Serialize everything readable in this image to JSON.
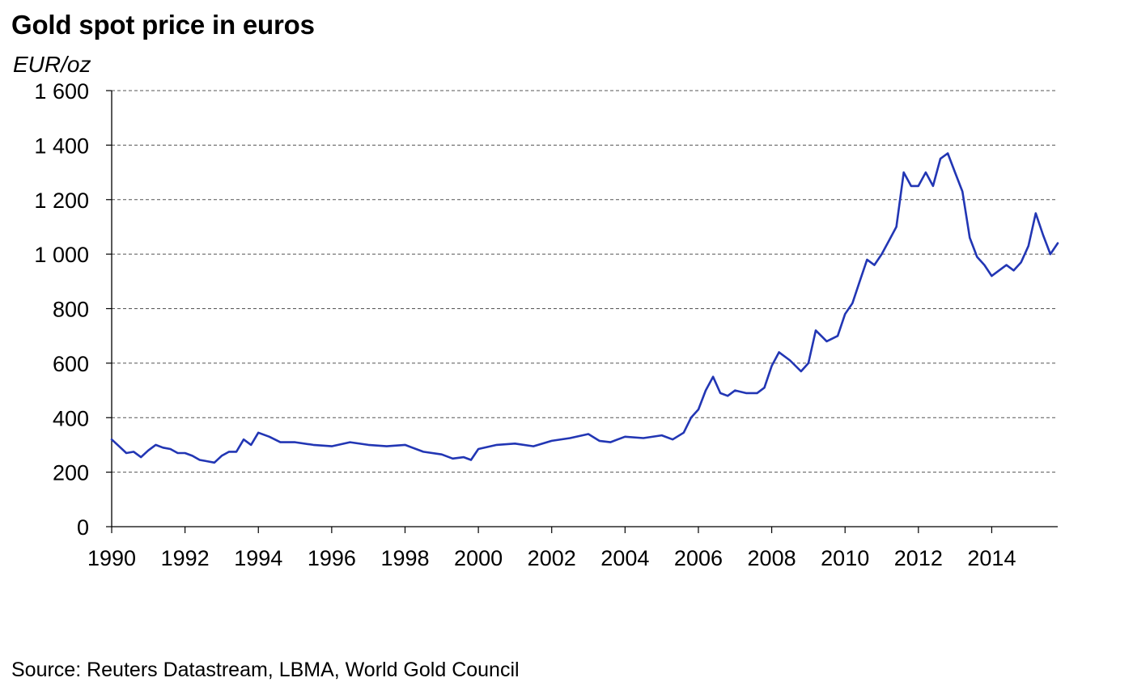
{
  "chart_data": {
    "type": "line",
    "title": "Gold spot price in euros",
    "ylabel": "EUR/oz",
    "xlabel": "",
    "xlim": [
      1990,
      2015.8
    ],
    "ylim": [
      0,
      1600
    ],
    "yticks": [
      0,
      200,
      400,
      600,
      800,
      1000,
      1200,
      1400,
      1600
    ],
    "ytick_labels": [
      "0",
      "200",
      "400",
      "600",
      "800",
      "1 000",
      "1 200",
      "1 400",
      "1 600"
    ],
    "xticks": [
      1990,
      1992,
      1994,
      1996,
      1998,
      2000,
      2002,
      2004,
      2006,
      2008,
      2010,
      2012,
      2014
    ],
    "xtick_labels": [
      "1990",
      "1992",
      "1994",
      "1996",
      "1998",
      "2000",
      "2002",
      "2004",
      "2006",
      "2008",
      "2010",
      "2012",
      "2014"
    ],
    "grid": "horizontal-dashed",
    "line_color": "#2236b4",
    "series": [
      {
        "x": [
          1990.0,
          1990.2,
          1990.4,
          1990.6,
          1990.8,
          1991.0,
          1991.2,
          1991.4,
          1991.6,
          1991.8,
          1992.0,
          1992.2,
          1992.4,
          1992.6,
          1992.8,
          1993.0,
          1993.2,
          1993.4,
          1993.6,
          1993.8,
          1994.0,
          1994.3,
          1994.6,
          1995.0,
          1995.5,
          1996.0,
          1996.5,
          1997.0,
          1997.5,
          1998.0,
          1998.5,
          1999.0,
          1999.3,
          1999.6,
          1999.8,
          2000.0,
          2000.5,
          2001.0,
          2001.5,
          2002.0,
          2002.5,
          2003.0,
          2003.3,
          2003.6,
          2004.0,
          2004.5,
          2005.0,
          2005.3,
          2005.6,
          2005.8,
          2006.0,
          2006.2,
          2006.4,
          2006.6,
          2006.8,
          2007.0,
          2007.3,
          2007.6,
          2007.8,
          2008.0,
          2008.2,
          2008.5,
          2008.8,
          2009.0,
          2009.2,
          2009.5,
          2009.8,
          2010.0,
          2010.2,
          2010.4,
          2010.6,
          2010.8,
          2011.0,
          2011.2,
          2011.4,
          2011.6,
          2011.8,
          2012.0,
          2012.2,
          2012.4,
          2012.6,
          2012.8,
          2013.0,
          2013.2,
          2013.4,
          2013.6,
          2013.8,
          2014.0,
          2014.2,
          2014.4,
          2014.6,
          2014.8,
          2015.0,
          2015.2,
          2015.4,
          2015.6,
          2015.8
        ],
        "y": [
          320,
          295,
          270,
          275,
          255,
          280,
          300,
          290,
          285,
          270,
          270,
          260,
          245,
          240,
          235,
          260,
          275,
          275,
          320,
          300,
          345,
          330,
          310,
          310,
          300,
          295,
          310,
          300,
          295,
          300,
          275,
          265,
          250,
          255,
          245,
          285,
          300,
          305,
          295,
          315,
          325,
          340,
          315,
          310,
          330,
          325,
          335,
          320,
          345,
          400,
          430,
          500,
          550,
          490,
          480,
          500,
          490,
          490,
          510,
          590,
          640,
          610,
          570,
          600,
          720,
          680,
          700,
          780,
          820,
          900,
          980,
          960,
          1000,
          1050,
          1100,
          1300,
          1250,
          1250,
          1300,
          1250,
          1350,
          1370,
          1300,
          1230,
          1060,
          990,
          960,
          920,
          940,
          960,
          940,
          970,
          1030,
          1150,
          1070,
          1000,
          1040
        ]
      }
    ],
    "source": "Source: Reuters Datastream, LBMA, World Gold Council"
  }
}
